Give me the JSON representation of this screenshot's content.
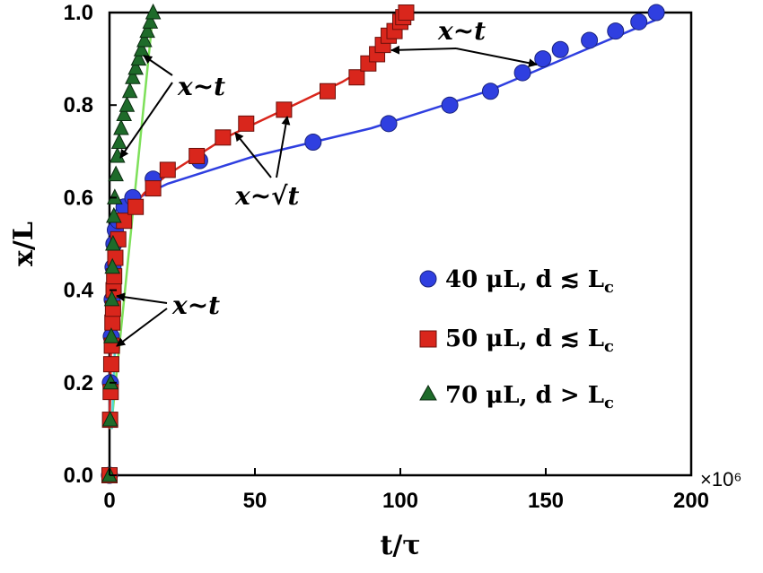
{
  "chart_data": {
    "type": "scatter",
    "xlabel": "t/τ",
    "ylabel": "x/L",
    "xlim": [
      0,
      200
    ],
    "ylim": [
      0.0,
      1.0
    ],
    "x_multiplier": "×10⁶",
    "x_ticks": [
      "0",
      "50",
      "100",
      "150",
      "200"
    ],
    "y_ticks": [
      "0.0",
      "0.2",
      "0.4",
      "0.6",
      "0.8",
      "1.0"
    ],
    "grid": false,
    "legend_position": "lower-right",
    "series": [
      {
        "name": "40 μL, d ≲ L",
        "name_sub": "c",
        "marker": "circle",
        "color": "#2f3fe0",
        "x": [
          0,
          0.3,
          0.6,
          0.9,
          1.2,
          1.5,
          2,
          3,
          5,
          8,
          15,
          31,
          70,
          96,
          117,
          131,
          142,
          149,
          155,
          165,
          174,
          182,
          188
        ],
        "y": [
          0.0,
          0.2,
          0.3,
          0.38,
          0.45,
          0.5,
          0.53,
          0.55,
          0.58,
          0.6,
          0.64,
          0.68,
          0.72,
          0.76,
          0.8,
          0.83,
          0.87,
          0.9,
          0.92,
          0.94,
          0.96,
          0.98,
          1.0
        ]
      },
      {
        "name": "50 μL, d ≲ L",
        "name_sub": "c",
        "marker": "square",
        "color": "#d9261c",
        "x": [
          0,
          0.2,
          0.4,
          0.6,
          0.8,
          1.0,
          1.2,
          1.4,
          1.6,
          2,
          3,
          5,
          9,
          15,
          20,
          30,
          39,
          47,
          60,
          75,
          85,
          89,
          92,
          94,
          96,
          98,
          100,
          101,
          102
        ],
        "y": [
          0.0,
          0.12,
          0.18,
          0.24,
          0.28,
          0.33,
          0.36,
          0.4,
          0.43,
          0.47,
          0.51,
          0.55,
          0.58,
          0.62,
          0.66,
          0.69,
          0.73,
          0.76,
          0.79,
          0.83,
          0.86,
          0.89,
          0.91,
          0.93,
          0.95,
          0.96,
          0.98,
          0.99,
          1.0
        ]
      },
      {
        "name": "70 μL, d > L",
        "name_sub": "c",
        "marker": "triangle",
        "color": "#1e6b2a",
        "x": [
          0,
          0.2,
          0.4,
          0.6,
          0.8,
          1.0,
          1.2,
          1.5,
          1.8,
          2.2,
          2.7,
          3.3,
          4,
          5,
          6,
          7,
          8,
          9,
          10,
          11,
          12,
          13,
          14,
          15
        ],
        "y": [
          0.0,
          0.12,
          0.2,
          0.3,
          0.38,
          0.45,
          0.5,
          0.56,
          0.6,
          0.65,
          0.69,
          0.72,
          0.75,
          0.78,
          0.8,
          0.83,
          0.86,
          0.88,
          0.9,
          0.92,
          0.94,
          0.96,
          0.98,
          1.0
        ]
      }
    ],
    "fit_lines": [
      {
        "color": "#2f3fe0",
        "x": [
          0,
          0.5,
          1,
          1.5,
          2,
          3,
          4,
          6,
          10,
          20,
          35,
          50,
          70,
          90,
          110,
          130,
          145,
          160,
          175,
          190
        ],
        "y": [
          0.1,
          0.3,
          0.45,
          0.54,
          0.57,
          0.58,
          0.585,
          0.59,
          0.6,
          0.63,
          0.66,
          0.69,
          0.72,
          0.75,
          0.79,
          0.83,
          0.87,
          0.91,
          0.95,
          0.99
        ]
      },
      {
        "color": "#d9261c",
        "x": [
          0,
          0.5,
          1,
          1.5,
          2,
          3,
          5,
          8,
          12,
          20,
          30,
          40,
          50,
          60,
          70,
          80,
          88
        ],
        "y": [
          0.1,
          0.28,
          0.4,
          0.47,
          0.52,
          0.55,
          0.56,
          0.58,
          0.61,
          0.65,
          0.69,
          0.73,
          0.76,
          0.79,
          0.82,
          0.85,
          0.88
        ]
      },
      {
        "color": "#e0559a",
        "x": [
          88,
          102
        ],
        "y": [
          0.88,
          1.0
        ]
      },
      {
        "color": "#7ee05a",
        "x": [
          0.5,
          15
        ],
        "y": [
          0.1,
          1.0
        ]
      },
      {
        "color": "#4fd8d0",
        "x": [
          0.8,
          3.5
        ],
        "y": [
          0.1,
          0.55
        ]
      }
    ],
    "annotations": [
      {
        "text": "x~t",
        "at_x": 30,
        "at_y": 0.835
      },
      {
        "text": "x~√t",
        "at_x": 42,
        "at_y": 0.595
      },
      {
        "text": "x~t",
        "at_x": 117,
        "at_y": 0.955
      },
      {
        "text": "x~t",
        "at_x": 30,
        "at_y": 0.35
      }
    ]
  }
}
